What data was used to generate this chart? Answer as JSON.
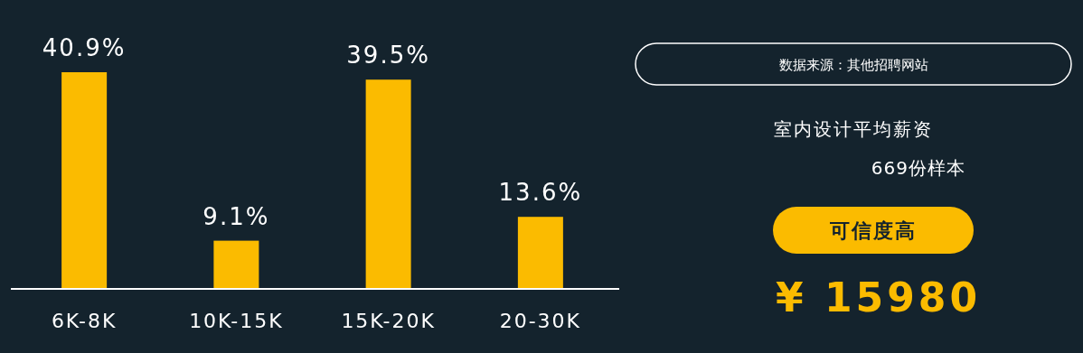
{
  "chart_data": [
    {
      "type": "bar",
      "categories": [
        "6K-8K",
        "10K-15K",
        "15K-20K",
        "20-30K"
      ],
      "values": [
        40.9,
        9.1,
        39.5,
        13.6
      ],
      "color": "#fbbb00",
      "data_labels": true,
      "value_labels": [
        "40.9%",
        "9.1%",
        "39.5%",
        "13.6%"
      ]
    },
    {
      "type": "other",
      "title": "室内设计平均薪资",
      "subtitle": "669份样本",
      "annotations": [
        "数据来源：其他招聘网站",
        "可信度高",
        "¥ 15980"
      ]
    }
  ]
}
